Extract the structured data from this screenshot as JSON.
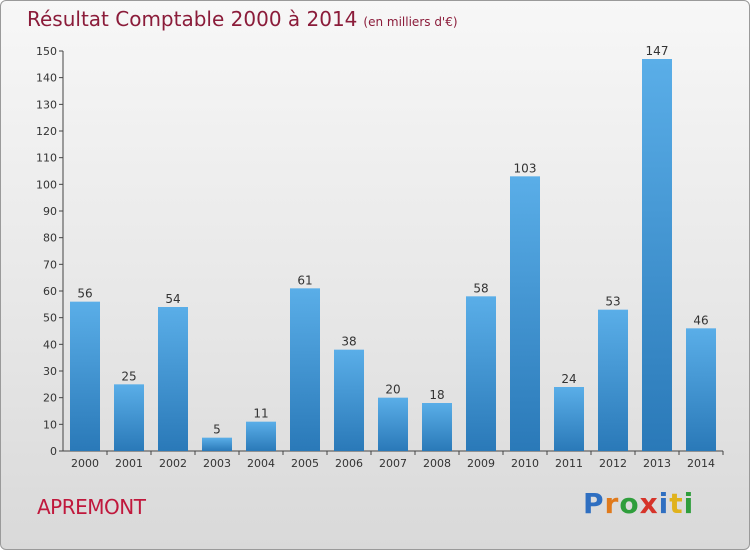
{
  "header": {
    "title": "Résultat Comptable 2000 à 2014",
    "subtitle": "(en milliers d'€)"
  },
  "footer": {
    "commune": "APREMONT",
    "logo_letters": [
      "P",
      "r",
      "o",
      "x",
      "i",
      "t",
      "i"
    ],
    "logo_colors": [
      "#2f6fc1",
      "#e07a1c",
      "#2f9e3c",
      "#d6342a",
      "#2f6fc1",
      "#e0b21c",
      "#2f9e3c"
    ]
  },
  "colors": {
    "bar_light": "#5aaee8",
    "bar_dark": "#2a79b8",
    "title": "#8b1c3a",
    "commune": "#c0183c"
  },
  "chart_data": {
    "type": "bar",
    "title": "Résultat Comptable 2000 à 2014",
    "subtitle": "(en milliers d'€)",
    "categories": [
      "2000",
      "2001",
      "2002",
      "2003",
      "2004",
      "2005",
      "2006",
      "2007",
      "2008",
      "2009",
      "2010",
      "2011",
      "2012",
      "2013",
      "2014"
    ],
    "values": [
      56,
      25,
      54,
      5,
      11,
      61,
      38,
      20,
      18,
      58,
      103,
      24,
      53,
      147,
      46
    ],
    "ylim": [
      0,
      150
    ],
    "yticks": [
      0,
      10,
      20,
      30,
      40,
      50,
      60,
      70,
      80,
      90,
      100,
      110,
      120,
      130,
      140,
      150
    ],
    "grid": false,
    "legend": "none"
  }
}
